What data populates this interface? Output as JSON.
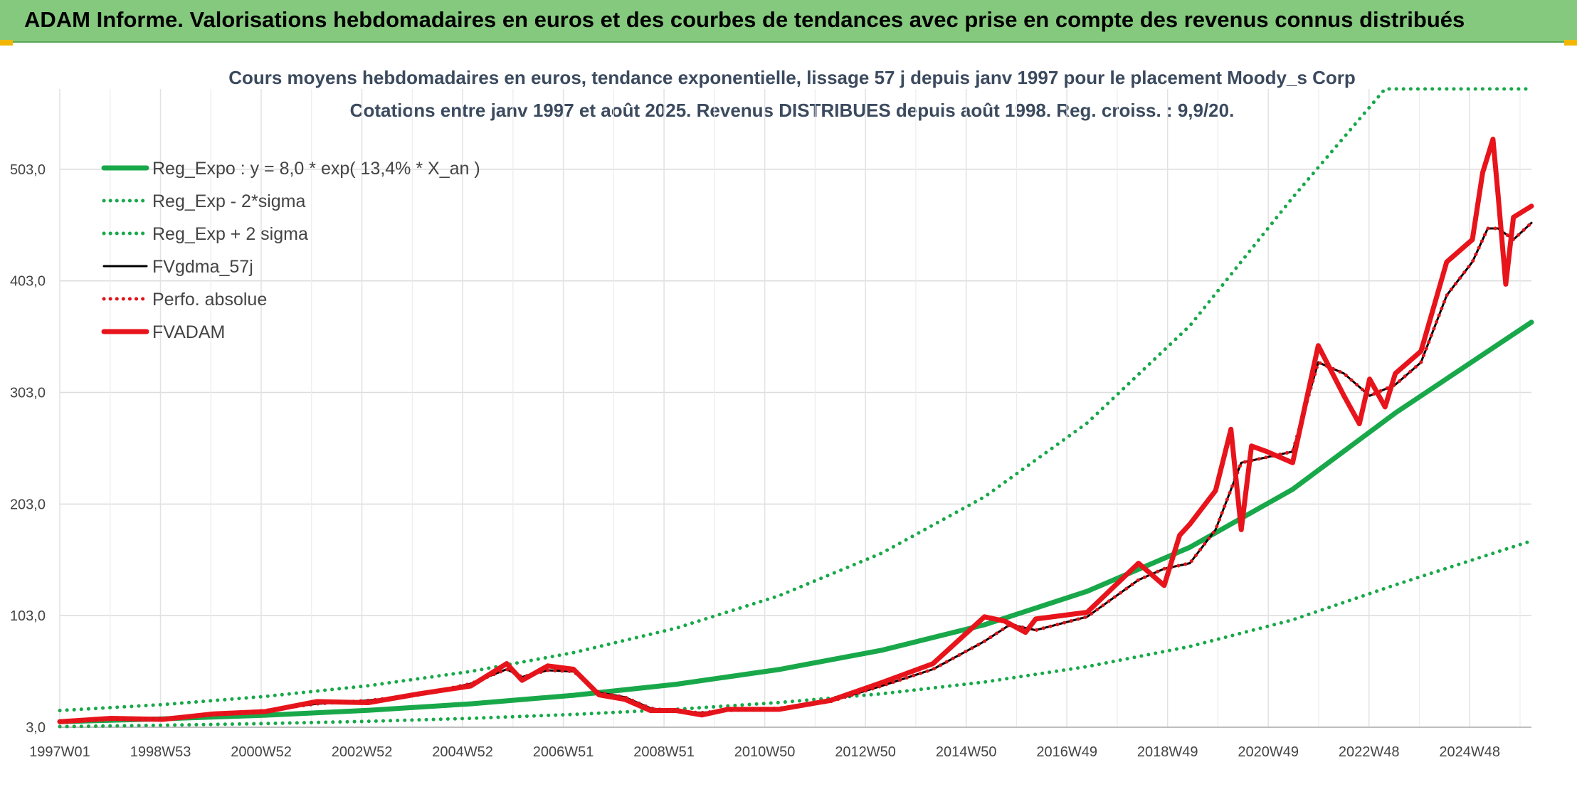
{
  "header": {
    "title": "ADAM Informe. Valorisations hebdomadaires en euros et des courbes de tendances avec prise en compte des revenus connus distribués"
  },
  "colors": {
    "header_bg": "#84c97d",
    "reg": "#18a84a",
    "sigma": "#18a84a",
    "fvgdma": "#000000",
    "perfo": "#e0131b",
    "fvadam": "#e8141b"
  },
  "chart_data": {
    "type": "line",
    "title": "Cours moyens hebdomadaires en euros, tendance exponentielle, lissage 57 j depuis janv 1997 pour le placement Moody_s Corp",
    "subtitle": "Cotations entre janv 1997 et août 2025. Revenus DISTRIBUES depuis août 1998. Reg. croiss. : 9,9/20.",
    "x_ticks": [
      "1997W01",
      "1998W53",
      "2000W52",
      "2002W52",
      "2004W52",
      "2006W51",
      "2008W51",
      "2010W50",
      "2012W50",
      "2014W50",
      "2016W49",
      "2018W49",
      "2020W49",
      "2022W48",
      "2024W48"
    ],
    "y_ticks": [
      "3,0",
      "103,0",
      "203,0",
      "303,0",
      "403,0",
      "503,0"
    ],
    "ylim": [
      3,
      575
    ],
    "xlim": [
      1997.0,
      2025.65
    ],
    "grid": true,
    "legend_position": "top-left",
    "series": [
      {
        "name": "Reg_Expo : y = 8,0 * exp( 13,4% *  X_an )",
        "style": "solid-thick",
        "color": "#18a84a",
        "x": [
          1997.0,
          1999,
          2001,
          2003,
          2005,
          2007,
          2009,
          2011,
          2013,
          2015,
          2017,
          2019,
          2021,
          2023,
          2025.65
        ],
        "y": [
          8,
          10.5,
          13.8,
          18.2,
          24.0,
          31.6,
          41.5,
          54.7,
          72.0,
          94.8,
          124.8,
          164.3,
          216.2,
          284.6,
          366
        ]
      },
      {
        "name": "Reg_Exp - 2*sigma",
        "style": "dotted",
        "color": "#18a84a",
        "x": [
          1997.0,
          1999,
          2001,
          2003,
          2005,
          2007,
          2009,
          2011,
          2013,
          2015,
          2017,
          2019,
          2021,
          2023,
          2025.65
        ],
        "y": [
          3.6,
          4.8,
          6.3,
          8.3,
          11.0,
          14.5,
          19.1,
          25.1,
          33.0,
          43.5,
          57.3,
          75.4,
          99.2,
          130.6,
          170
        ]
      },
      {
        "name": "Reg_Exp + 2 sigma",
        "style": "dotted",
        "color": "#18a84a",
        "x": [
          1997.0,
          1999,
          2001,
          2003,
          2005,
          2007,
          2009,
          2011,
          2013,
          2015,
          2017,
          2019,
          2021,
          2022.8,
          2023,
          2025.65
        ],
        "y": [
          18,
          23.3,
          30.6,
          40.2,
          53,
          69.8,
          91.8,
          120.8,
          159,
          209.4,
          275.6,
          362.8,
          477.6,
          575,
          575,
          575
        ]
      },
      {
        "name": "FVgdma_57j",
        "style": "solid-thin",
        "color": "#000000",
        "x": [
          1997.0,
          1998,
          1999,
          2000,
          2001,
          2002,
          2003,
          2004,
          2005,
          2005.7,
          2006,
          2006.5,
          2007,
          2007.5,
          2008,
          2008.5,
          2009,
          2009.5,
          2010,
          2011,
          2012,
          2013,
          2014,
          2015,
          2015.5,
          2016,
          2017,
          2018,
          2018.5,
          2019,
          2019.5,
          2020,
          2020.5,
          2021,
          2021.5,
          2022,
          2022.5,
          2023,
          2023.5,
          2024,
          2024.5,
          2024.8,
          2025,
          2025.3,
          2025.65
        ],
        "y": [
          8,
          10,
          11,
          14,
          18,
          24,
          27,
          32,
          42,
          55,
          48,
          54,
          53,
          34,
          30,
          20,
          17,
          16,
          18,
          20,
          26,
          40,
          55,
          80,
          95,
          90,
          102,
          135,
          145,
          150,
          180,
          240,
          245,
          250,
          330,
          320,
          300,
          310,
          330,
          390,
          420,
          450,
          450,
          440,
          455
        ]
      },
      {
        "name": "Perfo. absolue",
        "style": "dotted",
        "color": "#e0131b",
        "x": [
          1997.0,
          1998,
          1999,
          2000,
          2001,
          2002,
          2003,
          2004,
          2005,
          2005.7,
          2006,
          2006.5,
          2007,
          2007.5,
          2008,
          2008.5,
          2009,
          2009.5,
          2010,
          2011,
          2012,
          2013,
          2014,
          2015,
          2015.5,
          2016,
          2017,
          2018,
          2018.5,
          2019,
          2019.5,
          2020,
          2020.5,
          2021,
          2021.5,
          2022,
          2022.5,
          2023,
          2023.5,
          2024,
          2024.5,
          2024.8,
          2025,
          2025.3,
          2025.65
        ],
        "y": [
          8,
          10,
          11,
          14,
          18,
          24,
          27,
          32,
          42,
          55,
          48,
          54,
          53,
          34,
          30,
          20,
          17,
          16,
          18,
          20,
          26,
          40,
          55,
          80,
          95,
          90,
          102,
          135,
          145,
          150,
          180,
          240,
          245,
          250,
          330,
          320,
          300,
          310,
          330,
          390,
          420,
          450,
          450,
          440,
          455
        ]
      },
      {
        "name": "FVADAM",
        "style": "solid-thick",
        "color": "#e8141b",
        "x": [
          1997.0,
          1998,
          1999,
          2000,
          2001,
          2002,
          2003,
          2004,
          2005,
          2005.7,
          2006,
          2006.5,
          2007,
          2007.5,
          2008,
          2008.5,
          2009,
          2009.5,
          2010,
          2011,
          2012,
          2013,
          2014,
          2015,
          2015.4,
          2015.8,
          2016,
          2017,
          2018,
          2018.5,
          2018.8,
          2019,
          2019.5,
          2019.8,
          2020,
          2020.2,
          2020.5,
          2021,
          2021.5,
          2022,
          2022.3,
          2022.5,
          2022.8,
          2023,
          2023.5,
          2024,
          2024.5,
          2024.7,
          2024.9,
          2025,
          2025.15,
          2025.3,
          2025.65
        ],
        "y": [
          8,
          11,
          10,
          15,
          17,
          26,
          25,
          33,
          40,
          60,
          45,
          58,
          55,
          32,
          28,
          18,
          18,
          14,
          19,
          19,
          27,
          43,
          60,
          102,
          98,
          88,
          100,
          106,
          150,
          130,
          175,
          185,
          215,
          270,
          180,
          255,
          250,
          240,
          345,
          300,
          275,
          315,
          290,
          320,
          340,
          420,
          440,
          500,
          530,
          480,
          400,
          460,
          470
        ]
      }
    ]
  }
}
